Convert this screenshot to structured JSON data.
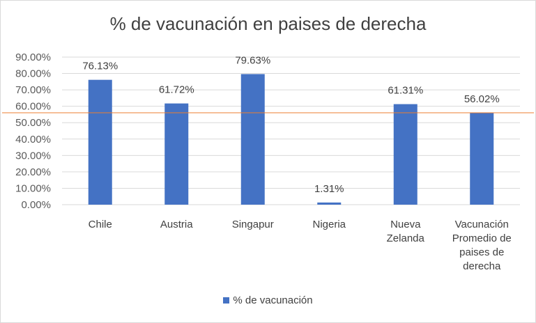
{
  "chart_data": {
    "type": "bar",
    "title": "% de vacunación en paises de derecha",
    "xlabel": "",
    "ylabel": "",
    "categories": [
      [
        "Chile"
      ],
      [
        "Austria"
      ],
      [
        "Singapur"
      ],
      [
        "Nigeria"
      ],
      [
        "Nueva",
        "Zelanda"
      ],
      [
        "Vacunación",
        "Promedio de",
        "paises de",
        "derecha"
      ]
    ],
    "series": [
      {
        "name": "% de vacunación",
        "values": [
          76.13,
          61.72,
          79.63,
          1.31,
          61.31,
          56.02
        ],
        "labels": [
          "76.13%",
          "61.72%",
          "79.63%",
          "1.31%",
          "61.31%",
          "56.02%"
        ],
        "color": "#4472c4"
      }
    ],
    "ylim": [
      0,
      90
    ],
    "yticks": [
      "0.00%",
      "10.00%",
      "20.00%",
      "30.00%",
      "40.00%",
      "50.00%",
      "60.00%",
      "70.00%",
      "80.00%",
      "90.00%"
    ],
    "reference_line": {
      "value": 56.02,
      "color": "#ed7d31"
    },
    "grid": true,
    "legend": "bottom"
  }
}
